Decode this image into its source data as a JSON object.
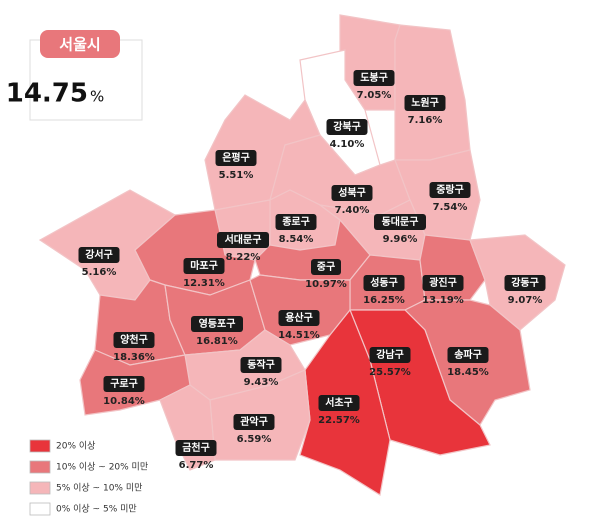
{
  "header": {
    "title": "서울시",
    "total": {
      "value": "14.75",
      "unit": "%"
    }
  },
  "legend": [
    {
      "label": "20% 이상",
      "color": "#e8343b"
    },
    {
      "label": "10% 이상 ~ 20% 미만",
      "color": "#e8777b"
    },
    {
      "label": "5% 이상 ~ 10% 미만",
      "color": "#f5b6b9"
    },
    {
      "label": "0% 이상 ~ 5% 미만",
      "color": "#ffffff"
    }
  ],
  "districts": [
    {
      "name": "도봉구",
      "value": "7.05%",
      "color": "#f5b6b9"
    },
    {
      "name": "노원구",
      "value": "7.16%",
      "color": "#f5b6b9"
    },
    {
      "name": "강북구",
      "value": "4.10%",
      "color": "#ffffff"
    },
    {
      "name": "은평구",
      "value": "5.51%",
      "color": "#f5b6b9"
    },
    {
      "name": "성북구",
      "value": "7.40%",
      "color": "#f5b6b9"
    },
    {
      "name": "중랑구",
      "value": "7.54%",
      "color": "#f5b6b9"
    },
    {
      "name": "종로구",
      "value": "8.54%",
      "color": "#f5b6b9"
    },
    {
      "name": "동대문구",
      "value": "9.96%",
      "color": "#f5b6b9"
    },
    {
      "name": "서대문구",
      "value": "8.22%",
      "color": "#f5b6b9"
    },
    {
      "name": "강서구",
      "value": "5.16%",
      "color": "#f5b6b9"
    },
    {
      "name": "마포구",
      "value": "12.31%",
      "color": "#e8777b"
    },
    {
      "name": "중구",
      "value": "10.97%",
      "color": "#e8777b"
    },
    {
      "name": "성동구",
      "value": "16.25%",
      "color": "#e8777b"
    },
    {
      "name": "광진구",
      "value": "13.19%",
      "color": "#e8777b"
    },
    {
      "name": "강동구",
      "value": "9.07%",
      "color": "#f5b6b9"
    },
    {
      "name": "양천구",
      "value": "18.36%",
      "color": "#e8777b"
    },
    {
      "name": "영등포구",
      "value": "16.81%",
      "color": "#e8777b"
    },
    {
      "name": "용산구",
      "value": "14.51%",
      "color": "#e8777b"
    },
    {
      "name": "송파구",
      "value": "18.45%",
      "color": "#e8777b"
    },
    {
      "name": "강남구",
      "value": "25.57%",
      "color": "#e8343b"
    },
    {
      "name": "동작구",
      "value": "9.43%",
      "color": "#f5b6b9"
    },
    {
      "name": "구로구",
      "value": "10.84%",
      "color": "#e8777b"
    },
    {
      "name": "서초구",
      "value": "22.57%",
      "color": "#e8343b"
    },
    {
      "name": "관악구",
      "value": "6.59%",
      "color": "#f5b6b9"
    },
    {
      "name": "금천구",
      "value": "6.77%",
      "color": "#f5b6b9"
    }
  ]
}
